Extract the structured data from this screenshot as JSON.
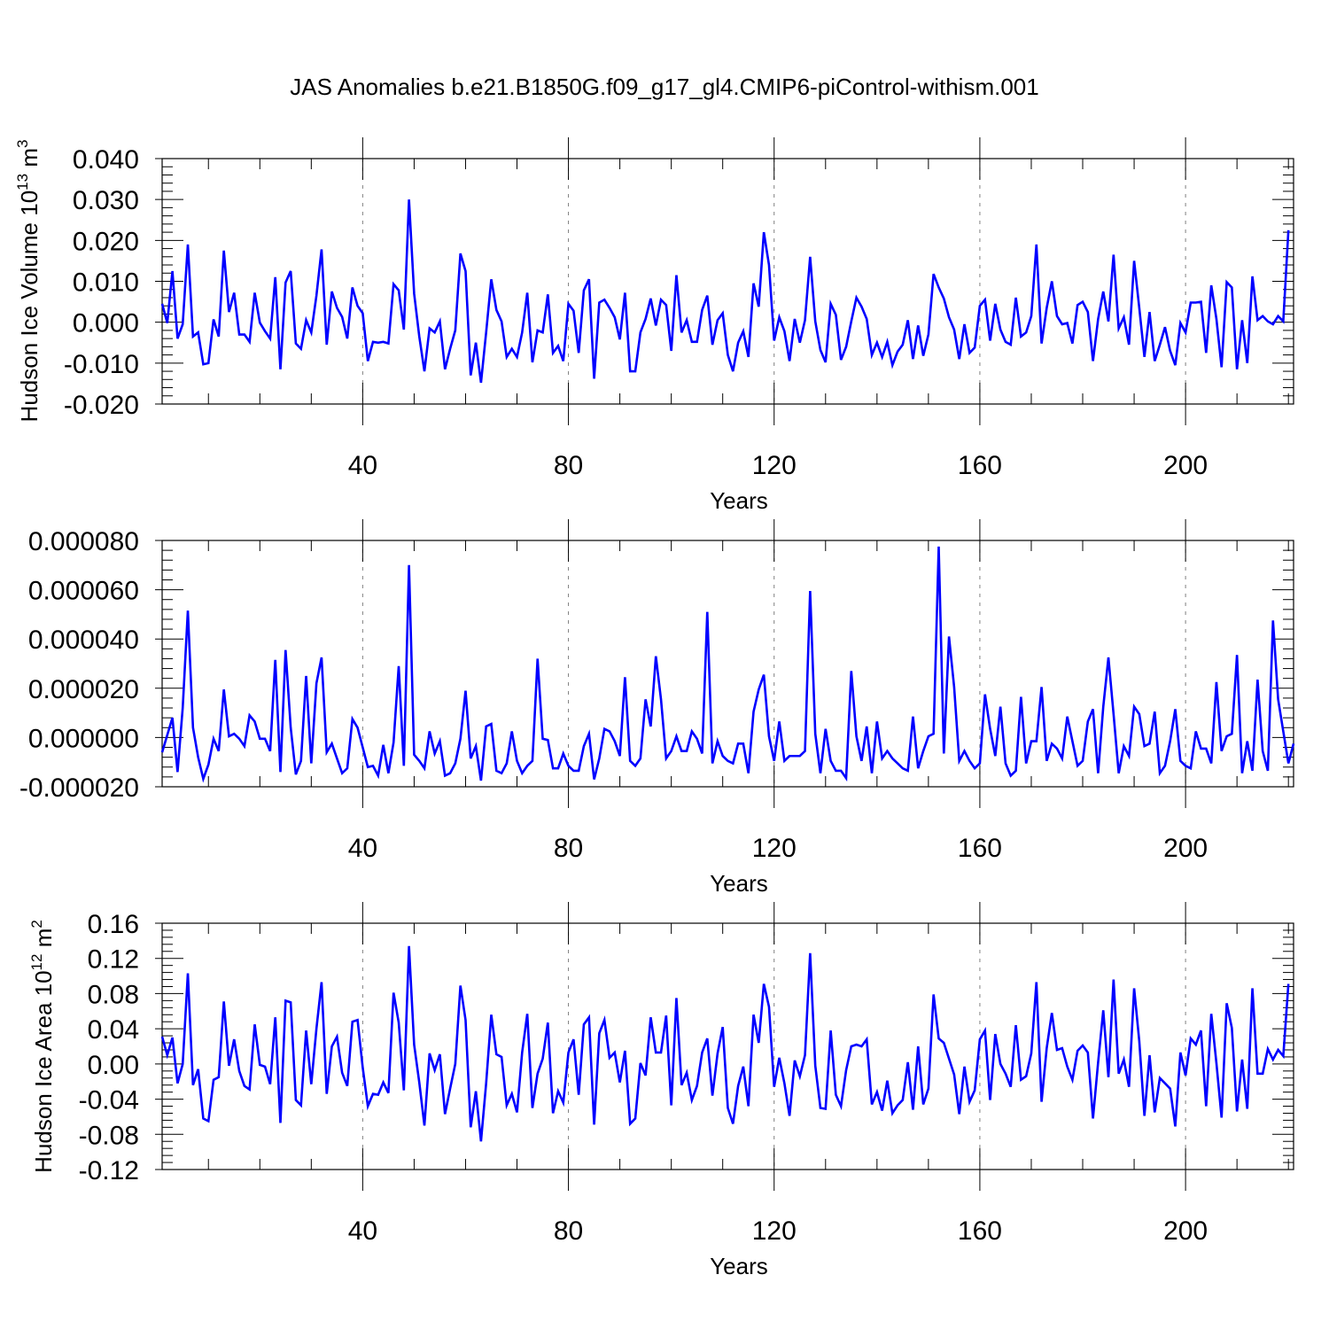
{
  "figure": {
    "title": "JAS Anomalies b.e21.B1850G.f09_g17_gl4.CMIP6-piControl-withism.001"
  },
  "chart_data": [
    {
      "type": "line",
      "xlabel": "Years",
      "ylabel": "Hudson Ice Volume 10",
      "ylabel_sup1": "13",
      "ylabel_mid": " m",
      "ylabel_sup2": "3",
      "xlim": [
        1,
        221
      ],
      "ylim": [
        -0.02,
        0.04
      ],
      "xticks": [
        40,
        80,
        120,
        160,
        200
      ],
      "xtick_labels": [
        "40",
        "80",
        "120",
        "160",
        "200"
      ],
      "yticks": [
        -0.02,
        -0.01,
        0.0,
        0.01,
        0.02,
        0.03,
        0.04
      ],
      "ytick_labels": [
        "-0.020",
        "-0.010",
        "0.000",
        "0.010",
        "0.020",
        "0.030",
        "0.040"
      ],
      "grid": "x dashed",
      "line_color": "#0000ff",
      "x_start": 1,
      "y": [
        0.0045,
        -0.0002,
        0.0125,
        -0.004,
        -0.0005,
        0.019,
        -0.0035,
        -0.0025,
        -0.0103,
        -0.01,
        0.0007,
        -0.0035,
        0.0175,
        0.0025,
        0.0072,
        -0.003,
        -0.003,
        -0.0048,
        0.0072,
        -0.0001,
        -0.0022,
        -0.004,
        0.011,
        -0.0115,
        0.0097,
        0.0125,
        -0.0052,
        -0.0065,
        0.0005,
        -0.0025,
        0.0065,
        0.0178,
        -0.0055,
        0.0075,
        0.0035,
        0.0013,
        -0.004,
        0.0085,
        0.004,
        0.0022,
        -0.0095,
        -0.0048,
        -0.005,
        -0.0048,
        -0.0052,
        0.0093,
        0.0078,
        -0.0018,
        0.03,
        0.007,
        -0.0035,
        -0.012,
        -0.0015,
        -0.0025,
        0.0002,
        -0.0115,
        -0.0065,
        -0.002,
        0.0168,
        0.0125,
        -0.013,
        -0.005,
        -0.0148,
        -0.0025,
        0.0105,
        0.003,
        0.0002,
        -0.0085,
        -0.0065,
        -0.0085,
        -0.0025,
        0.0072,
        -0.0098,
        -0.002,
        -0.0025,
        0.0068,
        -0.0075,
        -0.0058,
        -0.0095,
        0.0045,
        0.0028,
        -0.0075,
        0.0078,
        0.0105,
        -0.0138,
        0.0048,
        0.0055,
        0.0035,
        0.0012,
        -0.0042,
        0.0072,
        -0.012,
        -0.012,
        -0.0025,
        0.0008,
        0.0058,
        -0.0008,
        0.0055,
        0.0042,
        -0.007,
        0.0115,
        -0.0025,
        0.0005,
        -0.0048,
        -0.0048,
        0.003,
        0.0065,
        -0.0055,
        0.0005,
        0.0022,
        -0.008,
        -0.012,
        -0.005,
        -0.0022,
        -0.0085,
        0.0095,
        0.0038,
        0.022,
        0.014,
        -0.0045,
        0.0012,
        -0.0022,
        -0.0095,
        0.0008,
        -0.005,
        0.0005,
        0.016,
        0.0002,
        -0.0068,
        -0.0098,
        0.0045,
        0.0018,
        -0.0092,
        -0.006,
        0.0002,
        0.006,
        0.0038,
        0.0008,
        -0.008,
        -0.005,
        -0.0085,
        -0.0048,
        -0.0105,
        -0.0072,
        -0.0055,
        0.0005,
        -0.009,
        -0.0008,
        -0.0082,
        -0.003,
        0.0118,
        0.0085,
        0.0058,
        0.0012,
        -0.0018,
        -0.009,
        -0.0005,
        -0.0075,
        -0.0062,
        0.004,
        0.0055,
        -0.0045,
        0.0045,
        -0.0018,
        -0.0048,
        -0.0055,
        0.006,
        -0.0035,
        -0.0025,
        0.0015,
        0.019,
        -0.0052,
        0.0035,
        0.01,
        0.0015,
        -0.0005,
        -0.0002,
        -0.0052,
        0.0042,
        0.005,
        0.0025,
        -0.0095,
        0.0008,
        0.0075,
        0.0002,
        0.0165,
        -0.0015,
        0.0012,
        -0.0055,
        0.015,
        0.0035,
        -0.0085,
        0.0025,
        -0.0095,
        -0.0055,
        -0.0012,
        -0.007,
        -0.0105,
        -0.0002,
        -0.0025,
        0.0048,
        0.0048,
        0.005,
        -0.0075,
        0.009,
        0.0008,
        -0.011,
        0.0098,
        0.0085,
        -0.0115,
        0.0005,
        -0.01,
        0.0112,
        0.0005,
        0.0015,
        0.0002,
        -0.0005,
        0.0015,
        0.0002,
        0.0225
      ]
    },
    {
      "type": "line",
      "xlabel": "Years",
      "ylabel": "",
      "xlim": [
        1,
        221
      ],
      "ylim": [
        -2e-05,
        8e-05
      ],
      "xticks": [
        40,
        80,
        120,
        160,
        200
      ],
      "xtick_labels": [
        "40",
        "80",
        "120",
        "160",
        "200"
      ],
      "yticks": [
        -2e-05,
        0.0,
        2e-05,
        4e-05,
        6e-05,
        8e-05
      ],
      "ytick_labels": [
        "-0.000020",
        "0.000000",
        "0.000020",
        "0.000040",
        "0.000060",
        "0.000080"
      ],
      "grid": "x dashed",
      "line_color": "#0000ff",
      "x_start": 1,
      "y": [
        -6e-06,
        1e-06,
        8e-06,
        -1.4e-05,
        1.2e-05,
        5.15e-05,
        4e-06,
        -8e-06,
        -1.68e-05,
        -1.1e-05,
        -5e-07,
        -5.5e-06,
        1.95e-05,
        5e-07,
        1.5e-06,
        -5e-07,
        -3.5e-06,
        9e-06,
        6.5e-06,
        -5e-07,
        -5e-07,
        -5.5e-06,
        3.15e-05,
        -1.4e-05,
        3.55e-05,
        4e-06,
        -1.5e-05,
        -9.5e-06,
        2.5e-05,
        -1.05e-05,
        2.2e-05,
        3.25e-05,
        -6e-06,
        -2.5e-06,
        -8.5e-06,
        -1.45e-05,
        -1.25e-05,
        7.5e-06,
        4e-06,
        -4e-06,
        -1.2e-05,
        -1.15e-05,
        -1.55e-05,
        -3e-06,
        -1.45e-05,
        -2e-06,
        2.9e-05,
        -1.15e-05,
        7e-05,
        -7e-06,
        -9.5e-06,
        -1.25e-05,
        2.5e-06,
        -6.5e-06,
        -1.5e-06,
        -1.55e-05,
        -1.45e-05,
        -1.05e-05,
        -5e-07,
        1.9e-05,
        -8.5e-06,
        -3.5e-06,
        -1.75e-05,
        4.5e-06,
        5.5e-06,
        -1.35e-05,
        -1.45e-05,
        -1.05e-05,
        2.5e-06,
        -9.5e-06,
        -1.45e-05,
        -1.15e-05,
        -9.5e-06,
        3.2e-05,
        -5e-07,
        -1e-06,
        -1.25e-05,
        -1.25e-05,
        -6.5e-06,
        -1.15e-05,
        -1.35e-05,
        -1.35e-05,
        -3.5e-06,
        1.5e-06,
        -1.7e-05,
        -8.5e-06,
        3.5e-06,
        2.5e-06,
        -1.5e-06,
        -7.5e-06,
        2.45e-05,
        -9.5e-06,
        -1.15e-05,
        -8.5e-06,
        1.55e-05,
        4.5e-06,
        3.3e-05,
        1.55e-05,
        -8.5e-06,
        -5.5e-06,
        5e-07,
        -5.5e-06,
        -5.5e-06,
        2.5e-06,
        -5e-07,
        -6.5e-06,
        5.1e-05,
        -1.05e-05,
        -1.5e-06,
        -7.5e-06,
        -9.5e-06,
        -1.05e-05,
        -2.5e-06,
        -2.5e-06,
        -1.45e-05,
        1.05e-05,
        1.95e-05,
        2.55e-05,
        5e-07,
        -9.5e-06,
        6.5e-06,
        -9.5e-06,
        -7.5e-06,
        -7.5e-06,
        -7.5e-06,
        -5.5e-06,
        5.95e-05,
        1.5e-06,
        -1.45e-05,
        3.5e-06,
        -9.5e-06,
        -1.35e-05,
        -1.35e-05,
        -1.65e-05,
        2.7e-05,
        5e-07,
        -9.5e-06,
        4.5e-06,
        -1.45e-05,
        6.5e-06,
        -8.5e-06,
        -5.5e-06,
        -8.5e-06,
        -1.05e-05,
        -1.25e-05,
        -1.35e-05,
        8.5e-06,
        -1.25e-05,
        -5.5e-06,
        5e-07,
        1.5e-06,
        7.75e-05,
        -6.5e-06,
        4.1e-05,
        2.05e-05,
        -9.5e-06,
        -5.5e-06,
        -9.5e-06,
        -1.25e-05,
        -1.05e-05,
        1.75e-05,
        3.5e-06,
        -7.5e-06,
        1.25e-05,
        -1.05e-05,
        -1.55e-05,
        -1.35e-05,
        1.65e-05,
        -1.05e-05,
        -1.5e-06,
        -1.5e-06,
        2.05e-05,
        -9.5e-06,
        -2.5e-06,
        -4.5e-06,
        -8.5e-06,
        8.5e-06,
        -1.5e-06,
        -1.15e-05,
        -9.5e-06,
        6.5e-06,
        1.15e-05,
        -1.45e-05,
        1.25e-05,
        3.25e-05,
        9.5e-06,
        -1.45e-05,
        -3.5e-06,
        -7.5e-06,
        1.25e-05,
        9.5e-06,
        -3.5e-06,
        -2.5e-06,
        1.05e-05,
        -1.45e-05,
        -1.15e-05,
        -1.5e-06,
        1.15e-05,
        -9.5e-06,
        -1.15e-05,
        -1.25e-05,
        2.5e-06,
        -4.5e-06,
        -4.5e-06,
        -1.05e-05,
        2.25e-05,
        -5.5e-06,
        5e-07,
        1.5e-06,
        3.35e-05,
        -1.45e-05,
        -1.5e-06,
        -1.35e-05,
        2.35e-05,
        -5.5e-06,
        -1.35e-05,
        4.75e-05,
        1.55e-05,
        2.5e-06,
        -1.05e-05,
        -2.5e-06
      ]
    },
    {
      "type": "line",
      "xlabel": "Years",
      "ylabel": "Hudson Ice Area 10",
      "ylabel_sup1": "12",
      "ylabel_mid": " m",
      "ylabel_sup2": "2",
      "xlim": [
        1,
        221
      ],
      "ylim": [
        -0.12,
        0.16
      ],
      "xticks": [
        40,
        80,
        120,
        160,
        200
      ],
      "xtick_labels": [
        "40",
        "80",
        "120",
        "160",
        "200"
      ],
      "yticks": [
        -0.12,
        -0.08,
        -0.04,
        0.0,
        0.04,
        0.08,
        0.12,
        0.16
      ],
      "ytick_labels": [
        "-0.12",
        "-0.08",
        "-0.04",
        "0.00",
        "0.04",
        "0.08",
        "0.12",
        "0.16"
      ],
      "grid": "x dashed",
      "line_color": "#0000ff",
      "x_start": 1,
      "y": [
        0.031,
        0.01,
        0.03,
        -0.022,
        0.0,
        0.103,
        -0.024,
        -0.006,
        -0.062,
        -0.065,
        -0.018,
        -0.015,
        0.071,
        -0.002,
        0.028,
        -0.008,
        -0.025,
        -0.029,
        0.045,
        -0.001,
        -0.003,
        -0.023,
        0.053,
        -0.067,
        0.072,
        0.07,
        -0.041,
        -0.047,
        0.038,
        -0.023,
        0.04,
        0.093,
        -0.034,
        0.02,
        0.031,
        -0.01,
        -0.025,
        0.048,
        0.05,
        -0.004,
        -0.048,
        -0.034,
        -0.035,
        -0.021,
        -0.033,
        0.081,
        0.047,
        -0.03,
        0.134,
        0.022,
        -0.021,
        -0.07,
        0.012,
        -0.007,
        0.011,
        -0.057,
        -0.028,
        0.0,
        0.089,
        0.05,
        -0.072,
        -0.031,
        -0.088,
        -0.022,
        0.056,
        0.011,
        0.008,
        -0.047,
        -0.034,
        -0.055,
        0.013,
        0.057,
        -0.05,
        -0.011,
        0.006,
        0.047,
        -0.056,
        -0.031,
        -0.044,
        0.013,
        0.028,
        -0.035,
        0.045,
        0.053,
        -0.069,
        0.035,
        0.05,
        0.007,
        0.013,
        -0.021,
        0.015,
        -0.068,
        -0.062,
        0.001,
        -0.013,
        0.053,
        0.013,
        0.013,
        0.055,
        -0.047,
        0.075,
        -0.024,
        -0.01,
        -0.041,
        -0.025,
        0.013,
        0.029,
        -0.036,
        0.012,
        0.042,
        -0.05,
        -0.068,
        -0.025,
        -0.003,
        -0.048,
        0.056,
        0.024,
        0.091,
        0.065,
        -0.026,
        0.007,
        -0.022,
        -0.059,
        0.004,
        -0.014,
        0.01,
        0.126,
        -0.002,
        -0.05,
        -0.051,
        0.038,
        -0.035,
        -0.048,
        -0.007,
        0.02,
        0.022,
        0.02,
        0.028,
        -0.046,
        -0.032,
        -0.053,
        -0.019,
        -0.056,
        -0.047,
        -0.041,
        0.002,
        -0.052,
        0.02,
        -0.046,
        -0.028,
        0.079,
        0.029,
        0.024,
        0.006,
        -0.012,
        -0.057,
        -0.003,
        -0.043,
        -0.03,
        0.028,
        0.038,
        -0.041,
        0.034,
        0.0,
        -0.011,
        -0.026,
        0.044,
        -0.018,
        -0.014,
        0.012,
        0.093,
        -0.043,
        0.018,
        0.058,
        0.016,
        0.018,
        -0.003,
        -0.018,
        0.015,
        0.021,
        0.013,
        -0.062,
        0.002,
        0.061,
        -0.015,
        0.096,
        -0.011,
        0.005,
        -0.026,
        0.086,
        0.026,
        -0.059,
        0.01,
        -0.055,
        -0.016,
        -0.022,
        -0.028,
        -0.071,
        0.013,
        -0.013,
        0.029,
        0.022,
        0.038,
        -0.048,
        0.057,
        0.001,
        -0.061,
        0.069,
        0.041,
        -0.054,
        0.005,
        -0.051,
        0.086,
        -0.011,
        -0.011,
        0.017,
        0.005,
        0.016,
        0.009,
        0.091
      ]
    }
  ]
}
